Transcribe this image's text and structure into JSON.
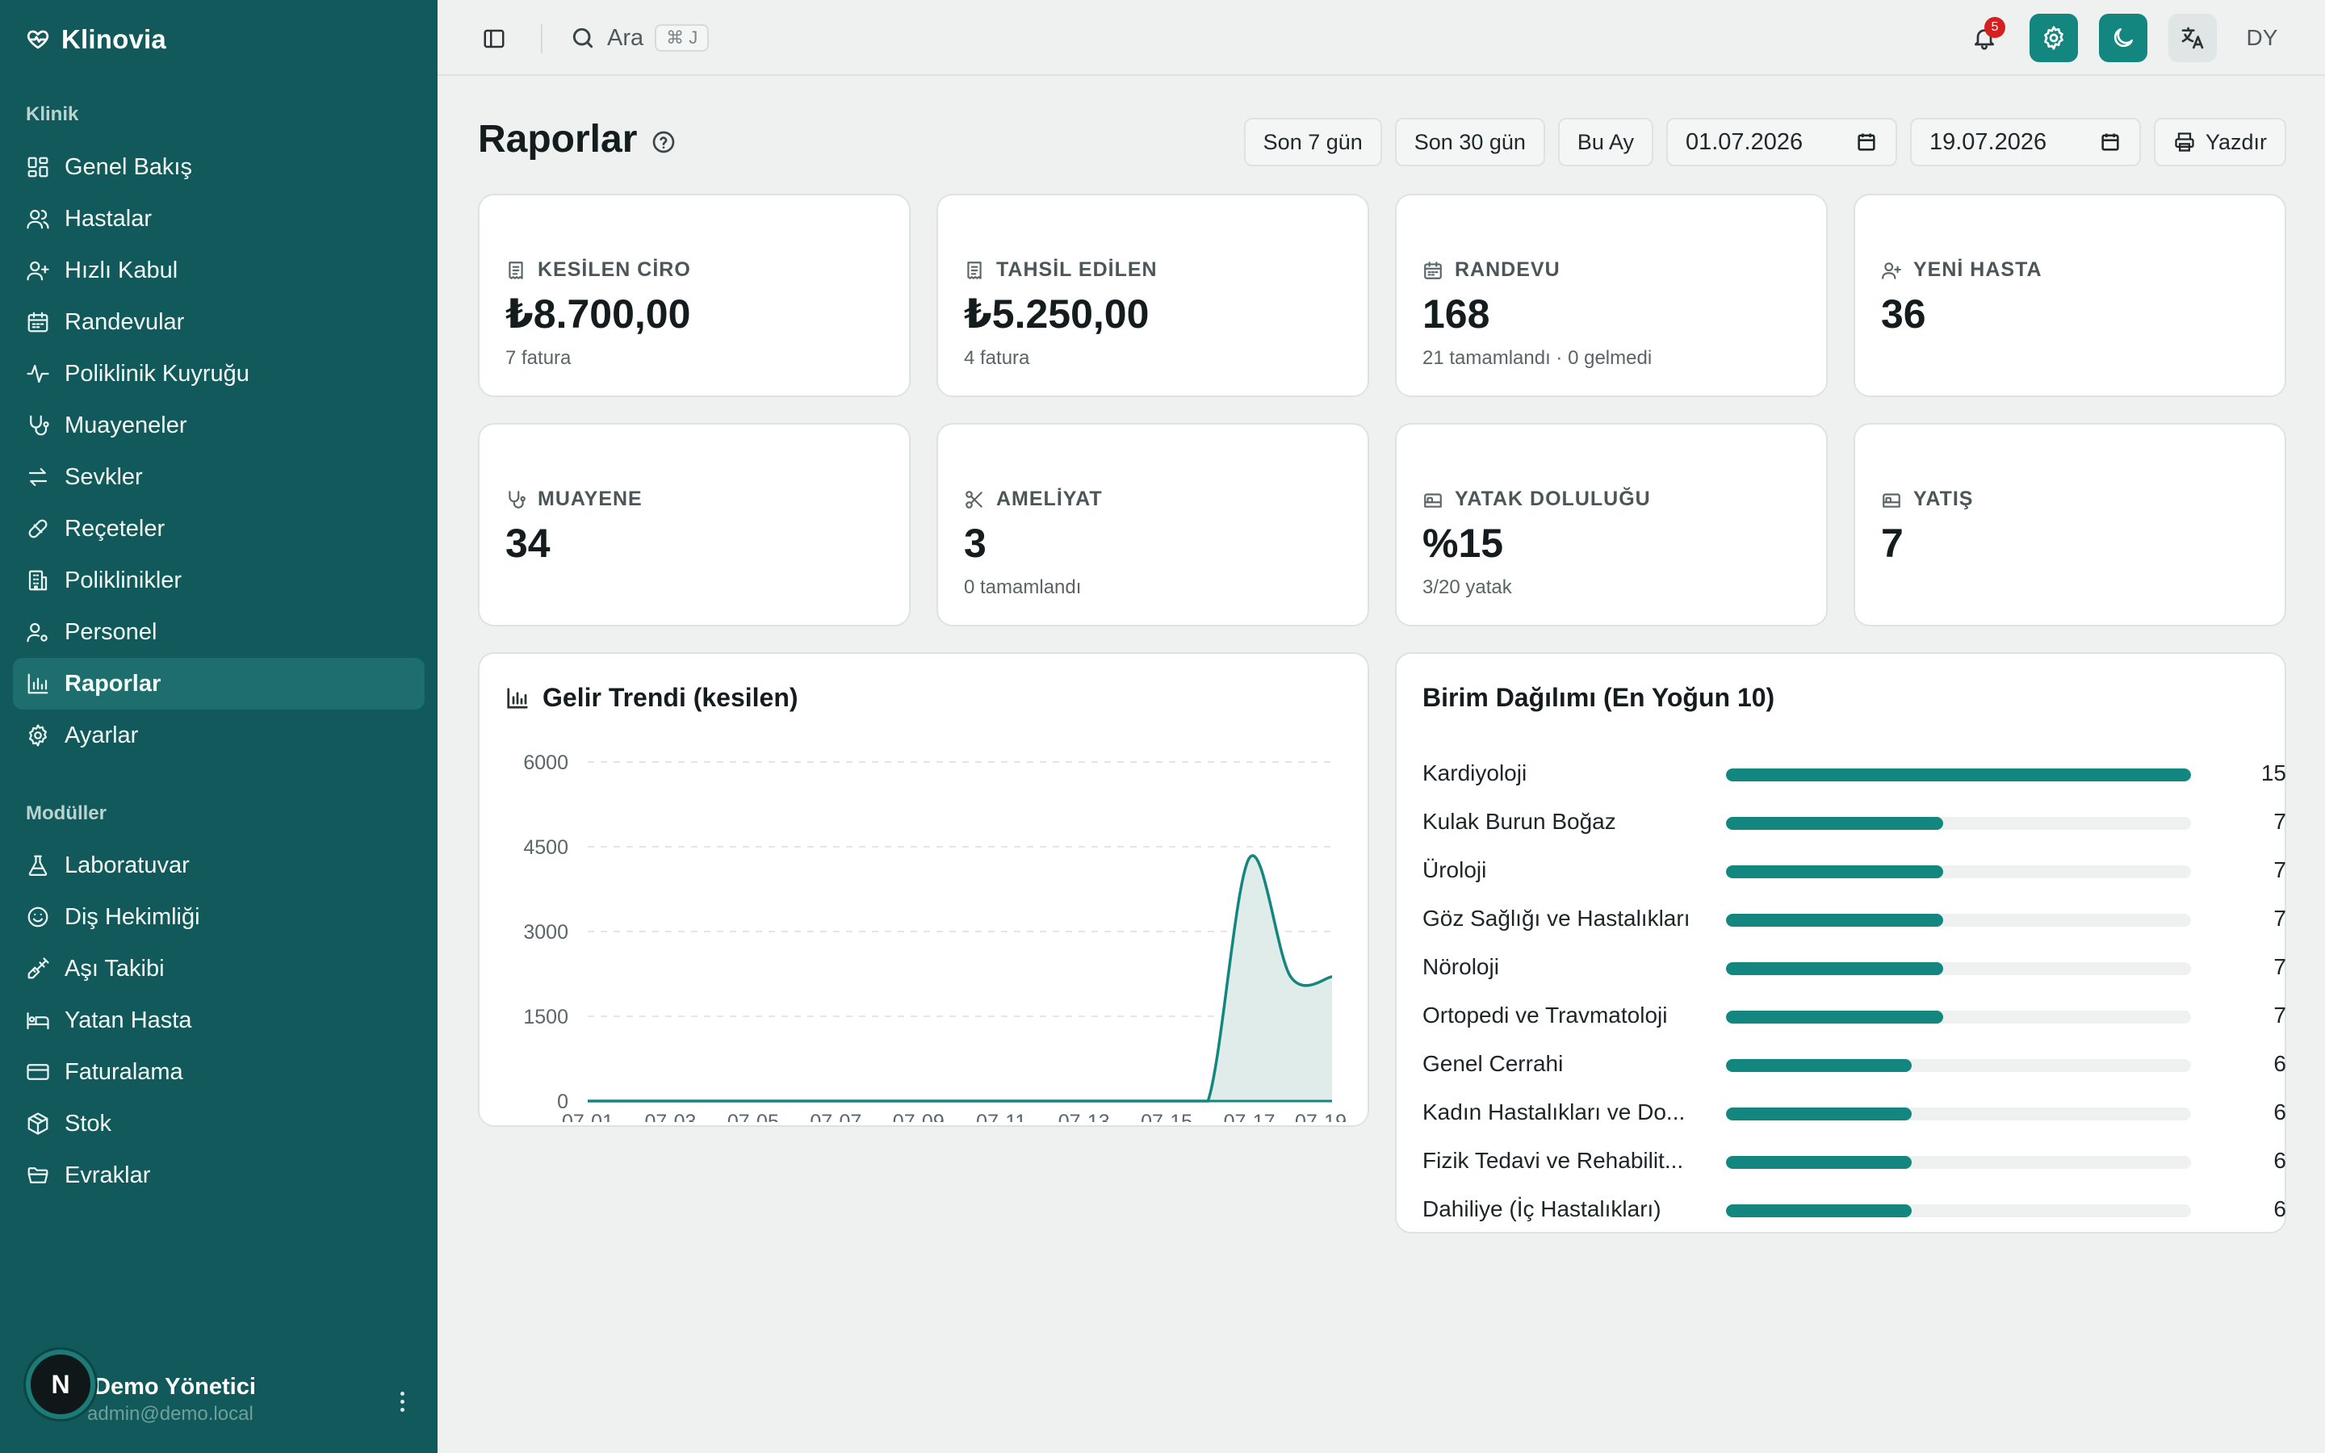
{
  "app": {
    "name": "Klinovia"
  },
  "sidebar": {
    "section_clinic": "Klinik",
    "clinic_items": [
      {
        "label": "Genel Bakış",
        "icon": "dashboard-icon"
      },
      {
        "label": "Hastalar",
        "icon": "users-icon"
      },
      {
        "label": "Hızlı Kabul",
        "icon": "user-plus-icon"
      },
      {
        "label": "Randevular",
        "icon": "calendar-icon"
      },
      {
        "label": "Poliklinik Kuyruğu",
        "icon": "activity-icon"
      },
      {
        "label": "Muayeneler",
        "icon": "stethoscope-icon"
      },
      {
        "label": "Sevkler",
        "icon": "arrows-icon"
      },
      {
        "label": "Reçeteler",
        "icon": "pill-icon"
      },
      {
        "label": "Poliklinikler",
        "icon": "building-icon"
      },
      {
        "label": "Personel",
        "icon": "user-cog-icon"
      },
      {
        "label": "Raporlar",
        "icon": "bar-chart-icon",
        "active": true
      },
      {
        "label": "Ayarlar",
        "icon": "gear-icon"
      }
    ],
    "section_modules": "Modüller",
    "module_items": [
      {
        "label": "Laboratuvar",
        "icon": "flask-icon"
      },
      {
        "label": "Diş Hekimliği",
        "icon": "smile-icon"
      },
      {
        "label": "Aşı Takibi",
        "icon": "syringe-icon"
      },
      {
        "label": "Yatan Hasta",
        "icon": "bed-icon"
      },
      {
        "label": "Faturalama",
        "icon": "credit-card-icon"
      },
      {
        "label": "Stok",
        "icon": "package-icon"
      },
      {
        "label": "Evraklar",
        "icon": "folder-icon"
      }
    ],
    "user": {
      "avatar_letter": "N",
      "name": "Demo Yönetici",
      "email": "admin@demo.local"
    }
  },
  "topbar": {
    "search_label": "Ara",
    "search_shortcut": "⌘ J",
    "notification_count": "5",
    "user_initials": "DY"
  },
  "page": {
    "title": "Raporlar",
    "filters": {
      "last7": "Son 7 gün",
      "last30": "Son 30 gün",
      "this_month": "Bu Ay",
      "date_from": "01.07.2026",
      "date_to": "19.07.2026",
      "print": "Yazdır"
    }
  },
  "stats": [
    {
      "label": "KESİLEN CİRO",
      "value": "₺8.700,00",
      "sub": "7 fatura",
      "icon": "receipt-icon"
    },
    {
      "label": "TAHSİL EDİLEN",
      "value": "₺5.250,00",
      "sub": "4 fatura",
      "icon": "receipt-icon"
    },
    {
      "label": "RANDEVU",
      "value": "168",
      "sub": "21 tamamlandı · 0 gelmedi",
      "icon": "calendar-icon"
    },
    {
      "label": "YENİ HASTA",
      "value": "36",
      "sub": "",
      "icon": "user-plus-icon"
    },
    {
      "label": "MUAYENE",
      "value": "34",
      "sub": "",
      "icon": "stethoscope-icon"
    },
    {
      "label": "AMELİYAT",
      "value": "3",
      "sub": "0 tamamlandı",
      "icon": "scissors-icon"
    },
    {
      "label": "YATAK DOLULUĞU",
      "value": "%15",
      "sub": "3/20 yatak",
      "icon": "bed-icon"
    },
    {
      "label": "YATIŞ",
      "value": "7",
      "sub": "",
      "icon": "bed-icon"
    }
  ],
  "revenue_panel": {
    "title": "Gelir Trendi (kesilen)"
  },
  "distribution_panel": {
    "title": "Birim Dağılımı (En Yoğun 10)",
    "max": 15,
    "rows": [
      {
        "name": "Kardiyoloji",
        "count": 15
      },
      {
        "name": "Kulak Burun Boğaz",
        "count": 7
      },
      {
        "name": "Üroloji",
        "count": 7
      },
      {
        "name": "Göz Sağlığı ve Hastalıkları",
        "count": 7
      },
      {
        "name": "Nöroloji",
        "count": 7
      },
      {
        "name": "Ortopedi ve Travmatoloji",
        "count": 7
      },
      {
        "name": "Genel Cerrahi",
        "count": 6
      },
      {
        "name": "Kadın Hastalıkları ve Do...",
        "count": 6
      },
      {
        "name": "Fizik Tedavi ve Rehabilit...",
        "count": 6
      },
      {
        "name": "Dahiliye (İç Hastalıkları)",
        "count": 6
      }
    ]
  },
  "chart_data": {
    "type": "area",
    "title": "Gelir Trendi (kesilen)",
    "x": [
      "07-01",
      "07-02",
      "07-03",
      "07-04",
      "07-05",
      "07-06",
      "07-07",
      "07-08",
      "07-09",
      "07-10",
      "07-11",
      "07-12",
      "07-13",
      "07-14",
      "07-15",
      "07-16",
      "07-17",
      "07-18",
      "07-19"
    ],
    "x_tick_labels": [
      "07-01",
      "07-03",
      "07-05",
      "07-07",
      "07-09",
      "07-11",
      "07-13",
      "07-15",
      "07-17",
      "07-19"
    ],
    "series": [
      {
        "values": [
          0,
          0,
          0,
          0,
          0,
          0,
          0,
          0,
          0,
          0,
          0,
          0,
          0,
          0,
          0,
          0,
          4300,
          2200,
          2200
        ]
      }
    ],
    "y_ticks": [
      "6000",
      "4500",
      "3000",
      "1500",
      "0"
    ],
    "ylim": [
      0,
      6000
    ],
    "grid": true,
    "color": "#138680",
    "fill_color": "#dfecea"
  }
}
